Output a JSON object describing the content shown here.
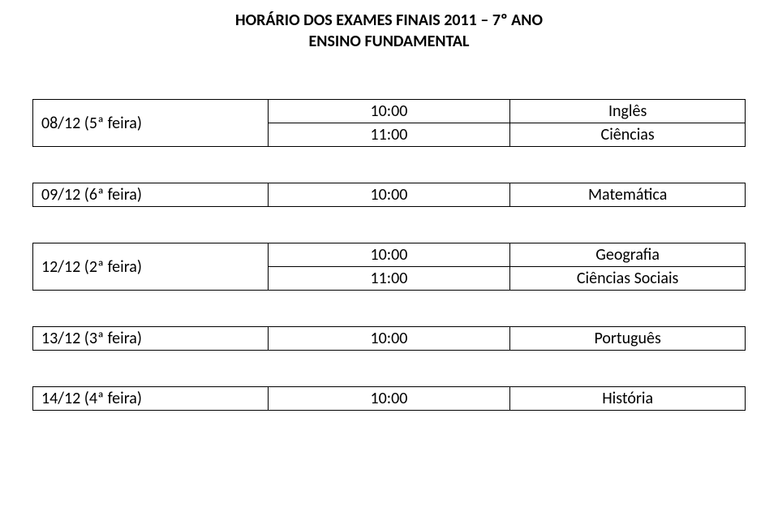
{
  "header": {
    "line1": "HORÁRIO DOS EXAMES FINAIS 2011 – 7º ANO",
    "line2": "ENSINO FUNDAMENTAL"
  },
  "tables": {
    "t1": {
      "date": "08/12 (5ª feira)",
      "r1_time": "10:00",
      "r1_subj": "Inglês",
      "r2_time": "11:00",
      "r2_subj": "Ciências"
    },
    "t2": {
      "date": "09/12 (6ª feira)",
      "time": "10:00",
      "subj": "Matemática"
    },
    "t3": {
      "date": "12/12 (2ª feira)",
      "r1_time": "10:00",
      "r1_subj": "Geografia",
      "r2_time": "11:00",
      "r2_subj": "Ciências Sociais"
    },
    "t4": {
      "date": "13/12 (3ª feira)",
      "time": "10:00",
      "subj": "Português"
    },
    "t5": {
      "date": "14/12 (4ª feira)",
      "time": "10:00",
      "subj": "História"
    }
  }
}
